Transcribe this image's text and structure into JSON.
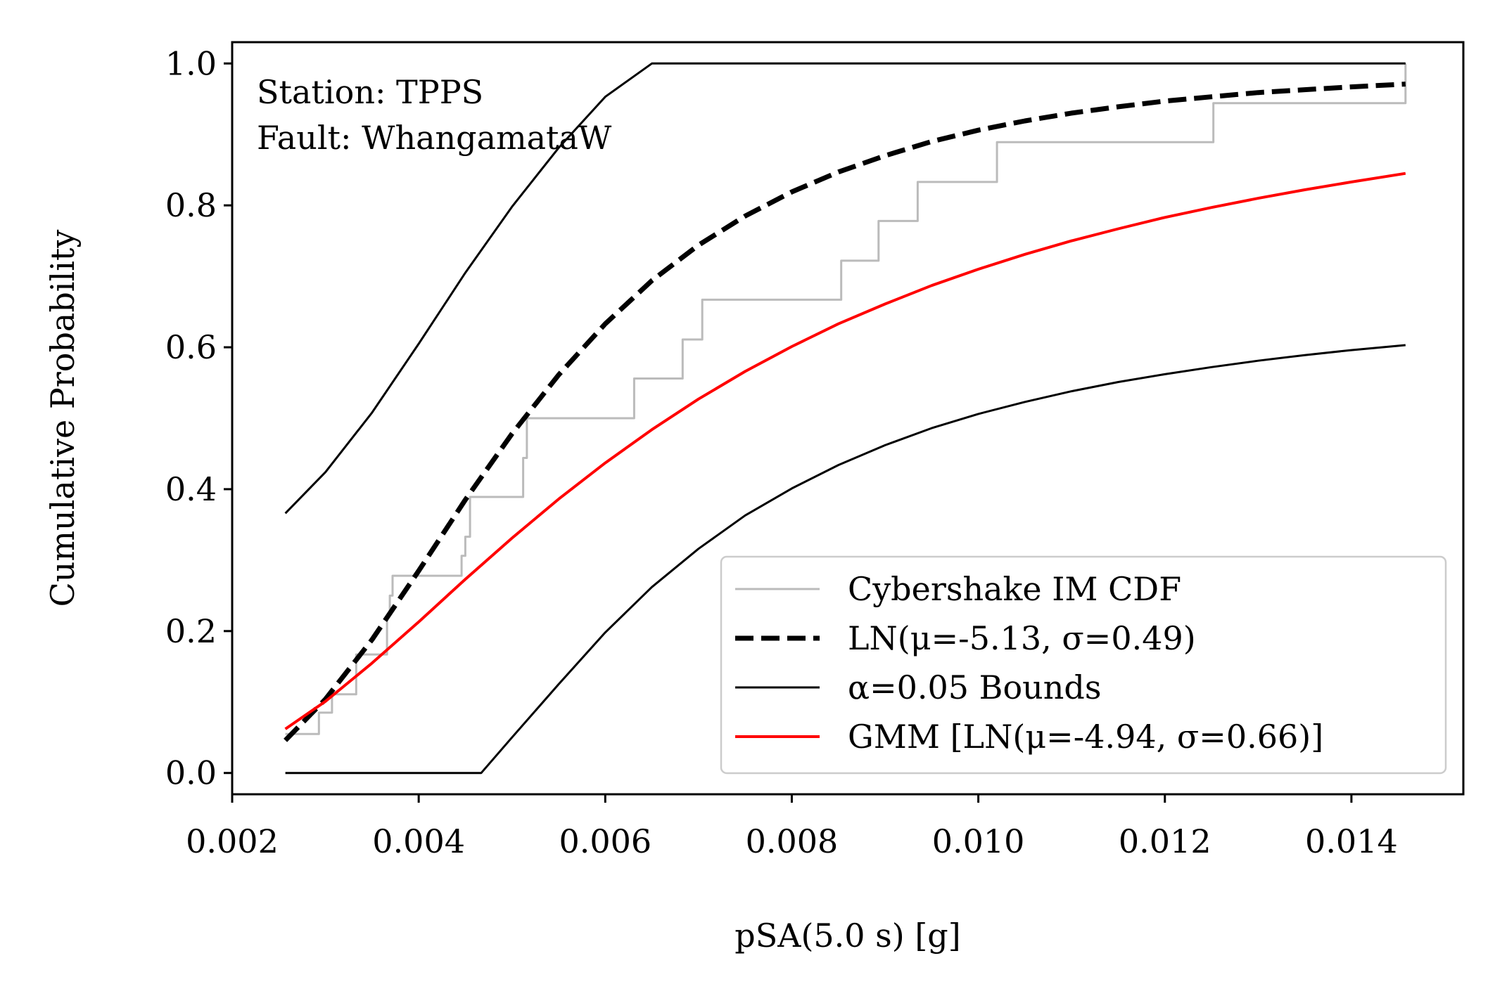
{
  "chart_data": {
    "type": "line",
    "xlabel": "pSA(5.0 s) [g]",
    "ylabel": "Cumulative Probability",
    "xlim": [
      0.002,
      0.0152
    ],
    "ylim": [
      -0.03,
      1.03
    ],
    "xticks": [
      0.002,
      0.004,
      0.006,
      0.008,
      0.01,
      0.012,
      0.014
    ],
    "xtick_labels": [
      "0.002",
      "0.004",
      "0.006",
      "0.008",
      "0.010",
      "0.012",
      "0.014"
    ],
    "yticks": [
      0.0,
      0.2,
      0.4,
      0.6,
      0.8,
      1.0
    ],
    "ytick_labels": [
      "0.0",
      "0.2",
      "0.4",
      "0.6",
      "0.8",
      "1.0"
    ],
    "annotation": [
      "Station: TPPS",
      "Fault: WhangamataW"
    ],
    "legend_position": "lower-right",
    "grid": false,
    "series": [
      {
        "name": "Cybershake IM CDF",
        "style": "step",
        "color": "#bbbbbb",
        "x": [
          0.00257,
          0.00293,
          0.00293,
          0.00307,
          0.00307,
          0.00333,
          0.00333,
          0.00366,
          0.00366,
          0.00369,
          0.00369,
          0.00372,
          0.00372,
          0.00446,
          0.00446,
          0.0045,
          0.0045,
          0.00455,
          0.00455,
          0.00512,
          0.00512,
          0.00516,
          0.00516,
          0.00631,
          0.00631,
          0.00683,
          0.00683,
          0.00704,
          0.00704,
          0.00853,
          0.00853,
          0.00893,
          0.00893,
          0.00935,
          0.00935,
          0.0102,
          0.0102,
          0.01252,
          0.01252,
          0.01458,
          0.01458
        ],
        "y": [
          0.055,
          0.055,
          0.085,
          0.085,
          0.111,
          0.111,
          0.167,
          0.167,
          0.222,
          0.222,
          0.25,
          0.25,
          0.278,
          0.278,
          0.306,
          0.306,
          0.333,
          0.333,
          0.389,
          0.389,
          0.444,
          0.444,
          0.5,
          0.5,
          0.556,
          0.556,
          0.611,
          0.611,
          0.667,
          0.667,
          0.722,
          0.722,
          0.778,
          0.778,
          0.833,
          0.833,
          0.889,
          0.889,
          0.944,
          0.944,
          1.0
        ]
      },
      {
        "name": "LN(μ=-5.13, σ=0.49)",
        "style": "dashed",
        "color": "#000000",
        "x": [
          0.00257,
          0.003,
          0.0035,
          0.004,
          0.0045,
          0.005,
          0.0055,
          0.006,
          0.0065,
          0.007,
          0.0075,
          0.008,
          0.0085,
          0.009,
          0.0095,
          0.01,
          0.0105,
          0.011,
          0.0115,
          0.012,
          0.0125,
          0.013,
          0.0135,
          0.014,
          0.01458
        ],
        "y": [
          0.046,
          0.104,
          0.188,
          0.285,
          0.385,
          0.478,
          0.561,
          0.633,
          0.694,
          0.744,
          0.785,
          0.819,
          0.847,
          0.87,
          0.89,
          0.906,
          0.919,
          0.93,
          0.939,
          0.947,
          0.953,
          0.959,
          0.963,
          0.967,
          0.971
        ]
      },
      {
        "name": "α=0.05 Bounds",
        "style": "solid",
        "color": "#000000",
        "width": "thin",
        "x": [
          0.00257,
          0.003,
          0.0035,
          0.004,
          0.0045,
          0.005,
          0.0055,
          0.006,
          0.0065,
          0.007,
          0.00743,
          0.01,
          0.01458
        ],
        "y": [
          0.366,
          0.424,
          0.508,
          0.605,
          0.705,
          0.798,
          0.881,
          0.953,
          1.0,
          1.0,
          1.0,
          1.0,
          1.0
        ]
      },
      {
        "name": "",
        "style": "solid",
        "color": "#000000",
        "width": "thin",
        "x": [
          0.00257,
          0.003,
          0.0035,
          0.004,
          0.0045,
          0.00467,
          0.005,
          0.0055,
          0.006,
          0.0065,
          0.007,
          0.0075,
          0.008,
          0.0085,
          0.009,
          0.0095,
          0.01,
          0.0105,
          0.011,
          0.0115,
          0.012,
          0.0125,
          0.013,
          0.0135,
          0.014,
          0.01458
        ],
        "y": [
          0.0,
          0.0,
          0.0,
          0.0,
          0.0,
          0.0,
          0.05,
          0.125,
          0.198,
          0.262,
          0.316,
          0.363,
          0.401,
          0.434,
          0.462,
          0.486,
          0.506,
          0.523,
          0.538,
          0.551,
          0.562,
          0.572,
          0.581,
          0.589,
          0.596,
          0.603
        ]
      },
      {
        "name": "GMM [LN(μ=-4.94, σ=0.66)]",
        "style": "solid",
        "color": "#ff0000",
        "x": [
          0.00257,
          0.003,
          0.0035,
          0.004,
          0.0045,
          0.005,
          0.0055,
          0.006,
          0.0065,
          0.007,
          0.0075,
          0.008,
          0.0085,
          0.009,
          0.0095,
          0.01,
          0.0105,
          0.011,
          0.0115,
          0.012,
          0.0125,
          0.013,
          0.0135,
          0.014,
          0.01458
        ],
        "y": [
          0.062,
          0.101,
          0.155,
          0.213,
          0.273,
          0.331,
          0.386,
          0.437,
          0.484,
          0.527,
          0.566,
          0.601,
          0.633,
          0.661,
          0.687,
          0.71,
          0.731,
          0.75,
          0.767,
          0.783,
          0.797,
          0.81,
          0.822,
          0.833,
          0.845
        ]
      }
    ]
  }
}
